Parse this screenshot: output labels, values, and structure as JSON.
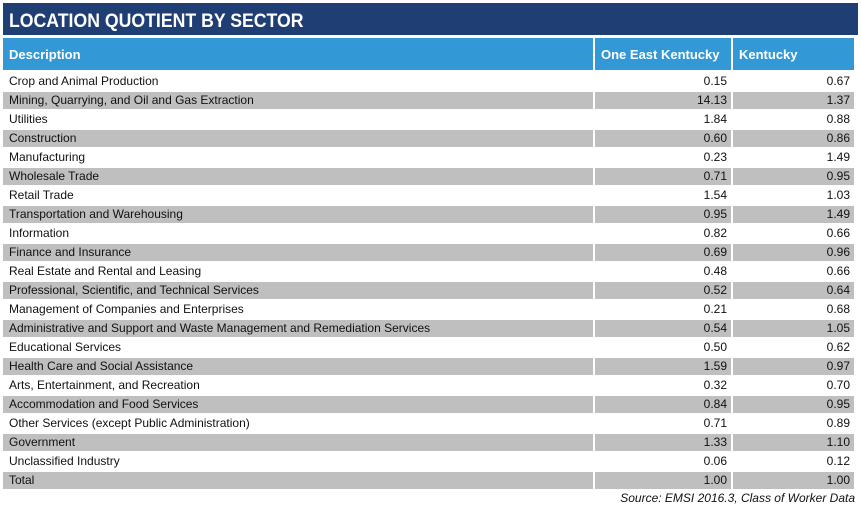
{
  "title": "LOCATION QUOTIENT BY SECTOR",
  "columns": [
    "Description",
    "One East Kentucky",
    "Kentucky"
  ],
  "rows": [
    {
      "description": "Crop and Animal Production",
      "one_east_kentucky": "0.15",
      "kentucky": "0.67"
    },
    {
      "description": "Mining, Quarrying, and Oil and Gas Extraction",
      "one_east_kentucky": "14.13",
      "kentucky": "1.37"
    },
    {
      "description": "Utilities",
      "one_east_kentucky": "1.84",
      "kentucky": "0.88"
    },
    {
      "description": "Construction",
      "one_east_kentucky": "0.60",
      "kentucky": "0.86"
    },
    {
      "description": "Manufacturing",
      "one_east_kentucky": "0.23",
      "kentucky": "1.49"
    },
    {
      "description": "Wholesale Trade",
      "one_east_kentucky": "0.71",
      "kentucky": "0.95"
    },
    {
      "description": "Retail Trade",
      "one_east_kentucky": "1.54",
      "kentucky": "1.03"
    },
    {
      "description": "Transportation and Warehousing",
      "one_east_kentucky": "0.95",
      "kentucky": "1.49"
    },
    {
      "description": "Information",
      "one_east_kentucky": "0.82",
      "kentucky": "0.66"
    },
    {
      "description": "Finance and Insurance",
      "one_east_kentucky": "0.69",
      "kentucky": "0.96"
    },
    {
      "description": "Real Estate and Rental and Leasing",
      "one_east_kentucky": "0.48",
      "kentucky": "0.66"
    },
    {
      "description": "Professional, Scientific, and Technical Services",
      "one_east_kentucky": "0.52",
      "kentucky": "0.64"
    },
    {
      "description": "Management of Companies and Enterprises",
      "one_east_kentucky": "0.21",
      "kentucky": "0.68"
    },
    {
      "description": "Administrative and Support and Waste Management and Remediation Services",
      "one_east_kentucky": "0.54",
      "kentucky": "1.05"
    },
    {
      "description": "Educational Services",
      "one_east_kentucky": "0.50",
      "kentucky": "0.62"
    },
    {
      "description": "Health Care and Social Assistance",
      "one_east_kentucky": "1.59",
      "kentucky": "0.97"
    },
    {
      "description": "Arts, Entertainment, and Recreation",
      "one_east_kentucky": "0.32",
      "kentucky": "0.70"
    },
    {
      "description": "Accommodation and Food Services",
      "one_east_kentucky": "0.84",
      "kentucky": "0.95"
    },
    {
      "description": "Other Services (except Public Administration)",
      "one_east_kentucky": "0.71",
      "kentucky": "0.89"
    },
    {
      "description": "Government",
      "one_east_kentucky": "1.33",
      "kentucky": "1.10"
    },
    {
      "description": "Unclassified Industry",
      "one_east_kentucky": "0.06",
      "kentucky": "0.12"
    },
    {
      "description": "Total",
      "one_east_kentucky": "1.00",
      "kentucky": "1.00"
    }
  ],
  "source": "Source: EMSI 2016.3, Class of Worker Data",
  "colors": {
    "title_bg": "#1f3e73",
    "header_bg": "#3399d6",
    "shaded_row_bg": "#bfbfbf"
  }
}
